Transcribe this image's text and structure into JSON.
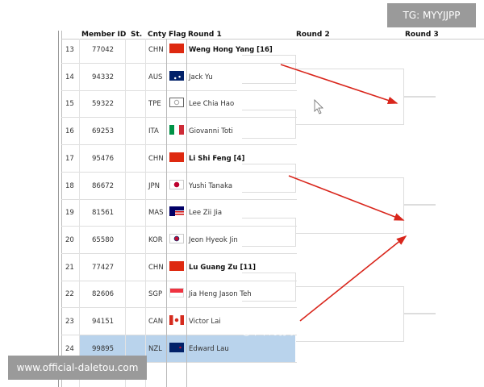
{
  "headers": {
    "member_id": "Member ID",
    "st": "St.",
    "cnty": "Cnty",
    "flag": "Flag",
    "round1": "Round 1",
    "round2": "Round 2",
    "round3": "Round 3"
  },
  "rows": [
    {
      "num": "13",
      "id": "77042",
      "cnty": "CHN",
      "flag": "chn",
      "name": "Weng Hong Yang [16]",
      "seed": true
    },
    {
      "num": "14",
      "id": "94332",
      "cnty": "AUS",
      "flag": "aus",
      "name": "Jack Yu",
      "seed": false
    },
    {
      "num": "15",
      "id": "59322",
      "cnty": "TPE",
      "flag": "tpe",
      "name": "Lee Chia Hao",
      "seed": false
    },
    {
      "num": "16",
      "id": "69253",
      "cnty": "ITA",
      "flag": "ita",
      "name": "Giovanni Toti",
      "seed": false
    },
    {
      "num": "17",
      "id": "95476",
      "cnty": "CHN",
      "flag": "chn",
      "name": "Li Shi Feng [4]",
      "seed": true
    },
    {
      "num": "18",
      "id": "86672",
      "cnty": "JPN",
      "flag": "jpn",
      "name": "Yushi Tanaka",
      "seed": false
    },
    {
      "num": "19",
      "id": "81561",
      "cnty": "MAS",
      "flag": "mas",
      "name": "Lee Zii Jia",
      "seed": false
    },
    {
      "num": "20",
      "id": "65580",
      "cnty": "KOR",
      "flag": "kor",
      "name": "Jeon Hyeok Jin",
      "seed": false
    },
    {
      "num": "21",
      "id": "77427",
      "cnty": "CHN",
      "flag": "chn",
      "name": "Lu Guang Zu [11]",
      "seed": true
    },
    {
      "num": "22",
      "id": "82606",
      "cnty": "SGP",
      "flag": "sgp",
      "name": "Jia Heng Jason Teh",
      "seed": false
    },
    {
      "num": "23",
      "id": "94151",
      "cnty": "CAN",
      "flag": "can",
      "name": "Victor Lai",
      "seed": false
    },
    {
      "num": "24",
      "id": "99895",
      "cnty": "NZL",
      "flag": "nzl",
      "name": "Edward Lau",
      "seed": false,
      "selected": true
    }
  ],
  "watermarks": {
    "tg": "TG: MYYJJPP",
    "site": "www.official-daletou.com",
    "weibo": "@牛牛的羽球日记"
  },
  "colors": {
    "selected_row": "#b9d3ec",
    "arrow": "#d9261c"
  }
}
